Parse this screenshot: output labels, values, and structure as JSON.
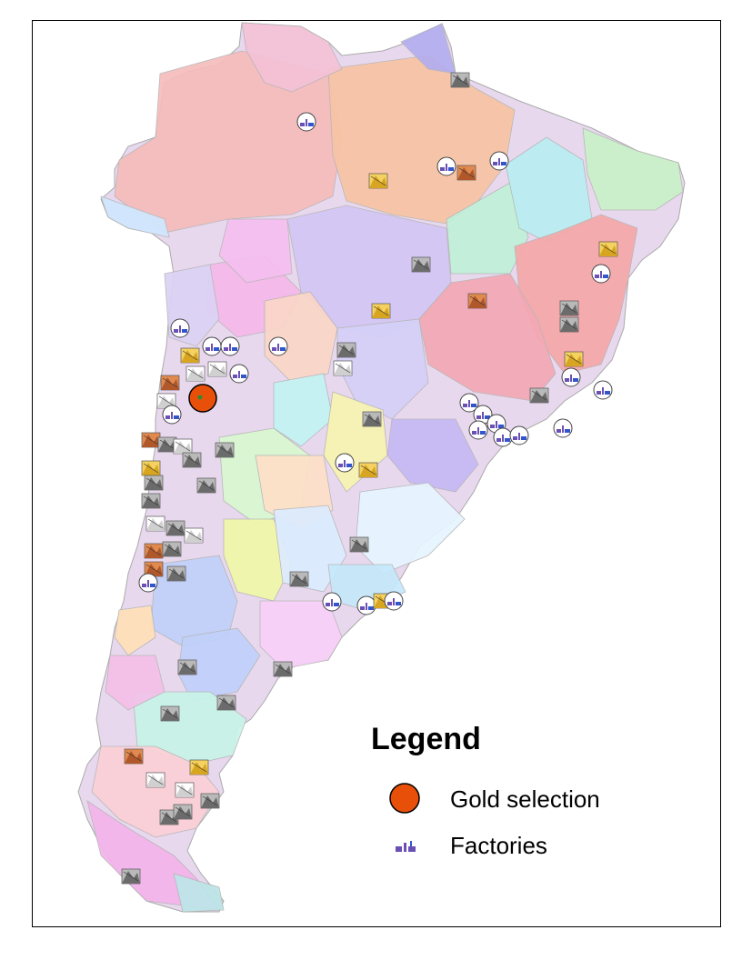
{
  "legend": {
    "title": "Legend",
    "items": [
      {
        "label": "Gold selection",
        "symbol": "gold-selection-icon",
        "color": "#e8500a"
      },
      {
        "label": "Factories",
        "symbol": "factory-icon",
        "color": "#6a4fb5"
      }
    ]
  },
  "colors": {
    "gold_selection": "#e8500a",
    "factory": "#6a4fb5",
    "mine_gold": "#d8a520",
    "mine_copper": "#b0582a",
    "mine_coal": "#6b6b6b",
    "processing_plant": "#d0d0d0"
  }
}
